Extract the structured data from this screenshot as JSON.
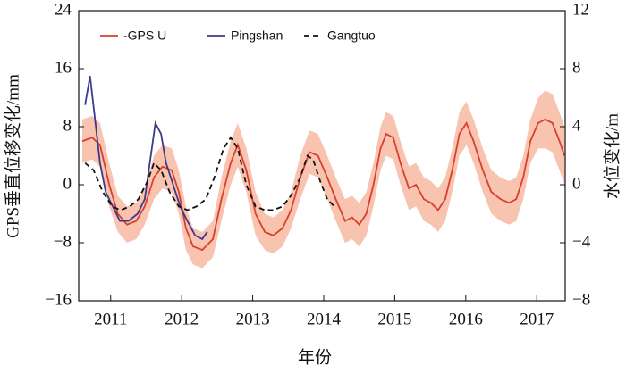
{
  "chart_data": {
    "type": "line",
    "xlabel": "年份",
    "ylabel": "GPS垂直位移变化/mm",
    "y2label": "水位变化/m",
    "xlim": [
      2010.55,
      2017.4
    ],
    "xticks": [
      2011,
      2012,
      2013,
      2014,
      2015,
      2016,
      2017
    ],
    "ylim": [
      -16,
      24
    ],
    "yticks": [
      {
        "value": -16,
        "label": "−16"
      },
      {
        "value": -8,
        "label": "−8"
      },
      0,
      8,
      16,
      24
    ],
    "y2lim": [
      -8,
      12
    ],
    "y2ticks": [
      {
        "value": -8,
        "label": "−8"
      },
      {
        "value": -4,
        "label": "−4"
      },
      0,
      4,
      8,
      12
    ],
    "legend": "upper left",
    "series": [
      {
        "name": "-GPS U",
        "color": "#d8402e",
        "band_color": "#f8c4b0",
        "x": [
          2010.6,
          2010.74,
          2010.85,
          2010.98,
          2011.1,
          2011.23,
          2011.36,
          2011.48,
          2011.61,
          2011.73,
          2011.86,
          2011.96,
          2012.06,
          2012.16,
          2012.29,
          2012.44,
          2012.56,
          2012.69,
          2012.79,
          2012.91,
          2013.04,
          2013.17,
          2013.29,
          2013.42,
          2013.54,
          2013.67,
          2013.8,
          2013.92,
          2014.05,
          2014.17,
          2014.3,
          2014.4,
          2014.5,
          2014.6,
          2014.7,
          2014.8,
          2014.88,
          2014.98,
          2015.08,
          2015.2,
          2015.3,
          2015.41,
          2015.51,
          2015.61,
          2015.71,
          2015.81,
          2015.91,
          2016.01,
          2016.11,
          2016.24,
          2016.36,
          2016.49,
          2016.61,
          2016.71,
          2016.81,
          2016.91,
          2017.02,
          2017.12,
          2017.22,
          2017.32,
          2017.39
        ],
        "values": [
          6,
          6.5,
          5.5,
          0,
          -4,
          -5.5,
          -5,
          -3,
          1,
          2.5,
          2,
          -1,
          -6,
          -8.5,
          -9,
          -7.5,
          -2,
          3,
          5.5,
          2,
          -4,
          -6.5,
          -7,
          -6,
          -3.5,
          1,
          4.5,
          4,
          1,
          -2,
          -5,
          -4.5,
          -5.5,
          -4,
          0,
          5,
          7,
          6.5,
          3,
          -0.5,
          0,
          -2,
          -2.5,
          -3.5,
          -2,
          2,
          7,
          8.5,
          6,
          2,
          -1,
          -2,
          -2.5,
          -2,
          1,
          6,
          8.5,
          9,
          8.5,
          6,
          4
        ],
        "errors": [
          3,
          3,
          3,
          3,
          2.5,
          2.5,
          2.5,
          2.5,
          3,
          3,
          3,
          3,
          3,
          2.5,
          2.5,
          2.5,
          3,
          3,
          3,
          3,
          3,
          2.5,
          2.5,
          2.5,
          2.5,
          3,
          3,
          3,
          3,
          3,
          3,
          3,
          3,
          3,
          3,
          3,
          3,
          3,
          3,
          3,
          3,
          3,
          3,
          3,
          3,
          3,
          3,
          3,
          3,
          3,
          3,
          3,
          3,
          3,
          3,
          3,
          3.5,
          4,
          4,
          4,
          4
        ]
      },
      {
        "name": "Pingshan",
        "color": "#3a3a8c",
        "axis": "y2",
        "x": [
          2010.64,
          2010.71,
          2010.78,
          2010.85,
          2010.93,
          2011.03,
          2011.13,
          2011.25,
          2011.38,
          2011.48,
          2011.58,
          2011.63,
          2011.71,
          2011.78,
          2011.88,
          2011.98,
          2012.08,
          2012.19,
          2012.29,
          2012.36
        ],
        "values": [
          5.5,
          7.5,
          4.5,
          1.5,
          -0.5,
          -1.5,
          -2.5,
          -2.5,
          -2,
          -1,
          2.5,
          4.25,
          3.5,
          1.5,
          0,
          -1.5,
          -2.5,
          -3.5,
          -3.75,
          -3.25
        ]
      },
      {
        "name": "Gangtuo",
        "color": "#111111",
        "axis": "y2",
        "dashed": true,
        "x": [
          2010.64,
          2010.76,
          2010.89,
          2011.02,
          2011.14,
          2011.27,
          2011.39,
          2011.52,
          2011.61,
          2011.71,
          2011.83,
          2011.96,
          2012.08,
          2012.21,
          2012.34,
          2012.46,
          2012.59,
          2012.69,
          2012.79,
          2012.91,
          2013.04,
          2013.17,
          2013.29,
          2013.42,
          2013.54,
          2013.67,
          2013.77,
          2013.85,
          2013.95,
          2014.05,
          2014.15
        ],
        "values": [
          1.5,
          1,
          -0.5,
          -1.5,
          -1.75,
          -1.5,
          -1,
          0.25,
          1.5,
          1,
          -0.5,
          -1.5,
          -1.75,
          -1.5,
          -1,
          0.5,
          2.5,
          3.25,
          2.5,
          0,
          -1.5,
          -1.75,
          -1.75,
          -1.5,
          -0.75,
          0.5,
          2,
          1.75,
          0.25,
          -1,
          -1.5
        ]
      }
    ]
  }
}
